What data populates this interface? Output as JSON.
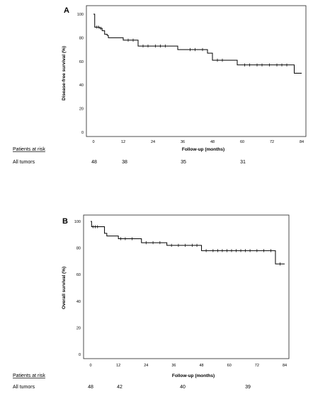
{
  "chart_data": [
    {
      "type": "line",
      "panel_label": "A",
      "title": "",
      "xlabel": "Follow-up (months)",
      "ylabel": "Disease-free survival (%)",
      "xlim": [
        0,
        84
      ],
      "ylim": [
        0,
        100
      ],
      "xticks": [
        "0",
        "12",
        "24",
        "36",
        "48",
        "60",
        "72",
        "84"
      ],
      "yticks": [
        "0",
        "20",
        "40",
        "60",
        "80",
        "100"
      ],
      "grid": false,
      "series": [
        {
          "steps": [
            [
              0,
              100
            ],
            [
              0.5,
              89
            ],
            [
              2.5,
              88
            ],
            [
              3.5,
              86
            ],
            [
              4.5,
              83
            ],
            [
              5.5,
              82
            ],
            [
              6,
              80
            ],
            [
              12,
              78
            ],
            [
              18,
              73
            ],
            [
              34,
              70
            ],
            [
              46,
              67
            ],
            [
              48,
              61
            ],
            [
              58,
              57
            ],
            [
              81,
              50
            ],
            [
              84,
              50
            ]
          ],
          "censored": [
            [
              1.2,
              89
            ],
            [
              2,
              89
            ],
            [
              3,
              88
            ],
            [
              14,
              78
            ],
            [
              16,
              78
            ],
            [
              20,
              73
            ],
            [
              22,
              73
            ],
            [
              25,
              73
            ],
            [
              27,
              73
            ],
            [
              29,
              73
            ],
            [
              39,
              70
            ],
            [
              41,
              70
            ],
            [
              44,
              70
            ],
            [
              50,
              61
            ],
            [
              52,
              61
            ],
            [
              61,
              57
            ],
            [
              63,
              57
            ],
            [
              66,
              57
            ],
            [
              68,
              57
            ],
            [
              71,
              57
            ],
            [
              74,
              57
            ],
            [
              76,
              57
            ],
            [
              78,
              57
            ]
          ]
        }
      ],
      "at_risk": {
        "header": "Patients at risk",
        "row_label": "All tumors",
        "values": [
          "48",
          "38",
          "35",
          "31"
        ],
        "times": [
          0,
          12,
          36,
          60
        ]
      }
    },
    {
      "type": "line",
      "panel_label": "B",
      "title": "",
      "xlabel": "Follow-up (months)",
      "ylabel": "Overall survival (%)",
      "xlim": [
        0,
        84
      ],
      "ylim": [
        0,
        100
      ],
      "xticks": [
        "0",
        "12",
        "24",
        "36",
        "48",
        "60",
        "72",
        "84"
      ],
      "yticks": [
        "0",
        "20",
        "40",
        "60",
        "80",
        "100"
      ],
      "grid": false,
      "series": [
        {
          "steps": [
            [
              0,
              100
            ],
            [
              0.4,
              96
            ],
            [
              6,
              91
            ],
            [
              7,
              89
            ],
            [
              12,
              87
            ],
            [
              22,
              84
            ],
            [
              33,
              82
            ],
            [
              48,
              78
            ],
            [
              80,
              68
            ],
            [
              84,
              68
            ]
          ],
          "censored": [
            [
              1,
              96
            ],
            [
              2,
              96
            ],
            [
              3,
              96
            ],
            [
              13,
              87
            ],
            [
              15,
              87
            ],
            [
              18,
              87
            ],
            [
              24,
              84
            ],
            [
              27,
              84
            ],
            [
              30,
              84
            ],
            [
              35,
              82
            ],
            [
              38,
              82
            ],
            [
              41,
              82
            ],
            [
              44,
              82
            ],
            [
              46,
              82
            ],
            [
              50,
              78
            ],
            [
              53,
              78
            ],
            [
              55,
              78
            ],
            [
              57,
              78
            ],
            [
              59,
              78
            ],
            [
              61,
              78
            ],
            [
              63,
              78
            ],
            [
              65,
              78
            ],
            [
              67,
              78
            ],
            [
              69,
              78
            ],
            [
              72,
              78
            ],
            [
              75,
              78
            ],
            [
              78,
              78
            ],
            [
              82,
              68
            ]
          ]
        }
      ],
      "at_risk": {
        "header": "Patients at risk",
        "row_label": "All tumors",
        "values": [
          "48",
          "42",
          "40",
          "39"
        ],
        "times": [
          0,
          12,
          36,
          60
        ]
      }
    }
  ]
}
